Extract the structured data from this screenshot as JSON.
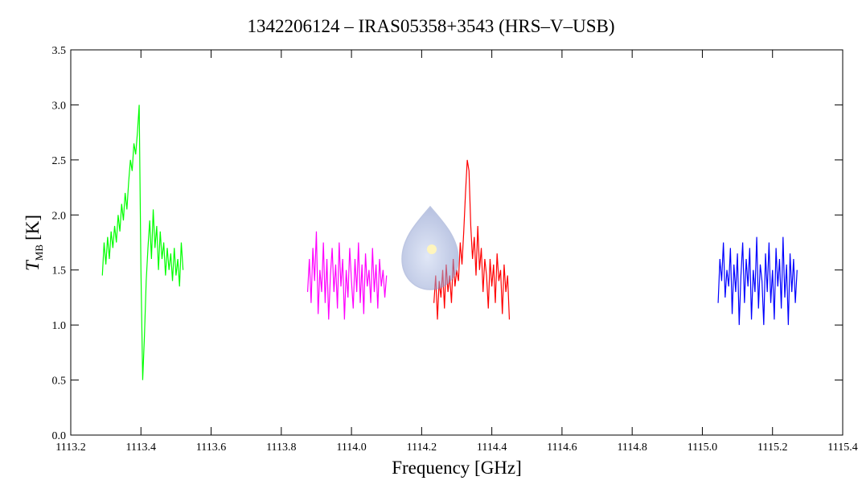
{
  "chart_data": {
    "type": "line",
    "title": "1342206124 – IRAS05358+3543 (HRS–V–USB)",
    "xlabel": "Frequency [GHz]",
    "ylabel": {
      "symbol": "T",
      "subscript": "MB",
      "unit": "[K]"
    },
    "xlim": [
      1113.2,
      1115.4
    ],
    "xticks": [
      1113.2,
      1113.4,
      1113.6,
      1113.8,
      {
        "value": 1114,
        "label": "1114.0"
      },
      1114.2,
      1114.4,
      1114.6,
      1114.8,
      {
        "value": 1115,
        "label": "1115.0"
      },
      1115.2,
      1115.4
    ],
    "ylim": [
      0,
      3.5
    ],
    "yticks": [
      {
        "value": 0,
        "label": "0.0"
      },
      0.5,
      {
        "value": 1,
        "label": "1.0"
      },
      1.5,
      {
        "value": 2,
        "label": "2.0"
      },
      2.5,
      {
        "value": 3,
        "label": "3.0"
      },
      3.5
    ],
    "series": [
      {
        "color": "#00ff00",
        "x": [
          1113.29,
          1113.295,
          1113.3,
          1113.305,
          1113.31,
          1113.315,
          1113.32,
          1113.325,
          1113.33,
          1113.335,
          1113.34,
          1113.345,
          1113.35,
          1113.355,
          1113.36,
          1113.365,
          1113.37,
          1113.375,
          1113.38,
          1113.385,
          1113.39,
          1113.395,
          1113.4,
          1113.405,
          1113.41,
          1113.415,
          1113.42,
          1113.425,
          1113.43,
          1113.435,
          1113.44,
          1113.445,
          1113.45,
          1113.455,
          1113.46,
          1113.465,
          1113.47,
          1113.475,
          1113.48,
          1113.485,
          1113.49,
          1113.495,
          1113.5,
          1113.505,
          1113.51,
          1113.515,
          1113.52
        ],
        "values": [
          1.45,
          1.75,
          1.55,
          1.8,
          1.6,
          1.85,
          1.7,
          1.9,
          1.75,
          2.0,
          1.85,
          2.1,
          1.95,
          2.2,
          2.05,
          2.3,
          2.5,
          2.4,
          2.65,
          2.55,
          2.75,
          3.0,
          1.5,
          0.5,
          0.9,
          1.4,
          1.7,
          1.95,
          1.6,
          2.05,
          1.7,
          1.9,
          1.5,
          1.85,
          1.6,
          1.75,
          1.45,
          1.7,
          1.5,
          1.65,
          1.4,
          1.7,
          1.45,
          1.6,
          1.35,
          1.75,
          1.5
        ]
      },
      {
        "color": "#ff00ff",
        "x": [
          1113.875,
          1113.88,
          1113.885,
          1113.89,
          1113.895,
          1113.9,
          1113.905,
          1113.91,
          1113.915,
          1113.92,
          1113.925,
          1113.93,
          1113.935,
          1113.94,
          1113.945,
          1113.95,
          1113.955,
          1113.96,
          1113.965,
          1113.97,
          1113.975,
          1113.98,
          1113.985,
          1113.99,
          1113.995,
          1114,
          1114.005,
          1114.01,
          1114.015,
          1114.02,
          1114.025,
          1114.03,
          1114.035,
          1114.04,
          1114.045,
          1114.05,
          1114.055,
          1114.06,
          1114.065,
          1114.07,
          1114.075,
          1114.08,
          1114.085,
          1114.09,
          1114.095,
          1114.1
        ],
        "values": [
          1.3,
          1.6,
          1.2,
          1.7,
          1.4,
          1.85,
          1.1,
          1.5,
          1.3,
          1.75,
          1.2,
          1.6,
          1.05,
          1.45,
          1.7,
          1.3,
          1.55,
          1.15,
          1.75,
          1.35,
          1.6,
          1.05,
          1.5,
          1.25,
          1.7,
          1.4,
          1.15,
          1.6,
          1.3,
          1.75,
          1.2,
          1.55,
          1.1,
          1.65,
          1.35,
          1.5,
          1.2,
          1.7,
          1.3,
          1.55,
          1.15,
          1.6,
          1.35,
          1.5,
          1.25,
          1.45
        ]
      },
      {
        "color": "#ff0000",
        "x": [
          1114.235,
          1114.24,
          1114.245,
          1114.25,
          1114.255,
          1114.26,
          1114.265,
          1114.27,
          1114.275,
          1114.28,
          1114.285,
          1114.29,
          1114.295,
          1114.3,
          1114.305,
          1114.31,
          1114.315,
          1114.32,
          1114.325,
          1114.33,
          1114.335,
          1114.34,
          1114.345,
          1114.35,
          1114.355,
          1114.36,
          1114.365,
          1114.37,
          1114.375,
          1114.38,
          1114.385,
          1114.39,
          1114.395,
          1114.4,
          1114.405,
          1114.41,
          1114.415,
          1114.42,
          1114.425,
          1114.43,
          1114.435,
          1114.44,
          1114.445,
          1114.45
        ],
        "values": [
          1.2,
          1.45,
          1.05,
          1.4,
          1.25,
          1.5,
          1.15,
          1.55,
          1.3,
          1.45,
          1.2,
          1.6,
          1.35,
          1.5,
          1.4,
          1.75,
          1.55,
          1.85,
          2.2,
          2.5,
          2.4,
          1.9,
          1.6,
          1.8,
          1.45,
          1.9,
          1.5,
          1.7,
          1.3,
          1.6,
          1.45,
          1.15,
          1.6,
          1.35,
          1.55,
          1.2,
          1.65,
          1.4,
          1.5,
          1.1,
          1.55,
          1.3,
          1.45,
          1.05
        ]
      },
      {
        "color": "#0000ff",
        "x": [
          1115.045,
          1115.05,
          1115.055,
          1115.06,
          1115.065,
          1115.07,
          1115.075,
          1115.08,
          1115.085,
          1115.09,
          1115.095,
          1115.1,
          1115.105,
          1115.11,
          1115.115,
          1115.12,
          1115.125,
          1115.13,
          1115.135,
          1115.14,
          1115.145,
          1115.15,
          1115.155,
          1115.16,
          1115.165,
          1115.17,
          1115.175,
          1115.18,
          1115.185,
          1115.19,
          1115.195,
          1115.2,
          1115.205,
          1115.21,
          1115.215,
          1115.22,
          1115.225,
          1115.23,
          1115.235,
          1115.24,
          1115.245,
          1115.25,
          1115.255,
          1115.26,
          1115.265,
          1115.27
        ],
        "values": [
          1.2,
          1.6,
          1.4,
          1.75,
          1.25,
          1.5,
          1.35,
          1.7,
          1.1,
          1.55,
          1.3,
          1.65,
          1.0,
          1.45,
          1.75,
          1.2,
          1.6,
          1.35,
          1.7,
          1.05,
          1.5,
          1.3,
          1.8,
          1.15,
          1.55,
          1.4,
          1.0,
          1.65,
          1.3,
          1.75,
          1.2,
          1.5,
          1.05,
          1.7,
          1.35,
          1.6,
          1.15,
          1.8,
          1.25,
          1.55,
          1.0,
          1.65,
          1.3,
          1.6,
          1.2,
          1.5
        ]
      }
    ]
  }
}
